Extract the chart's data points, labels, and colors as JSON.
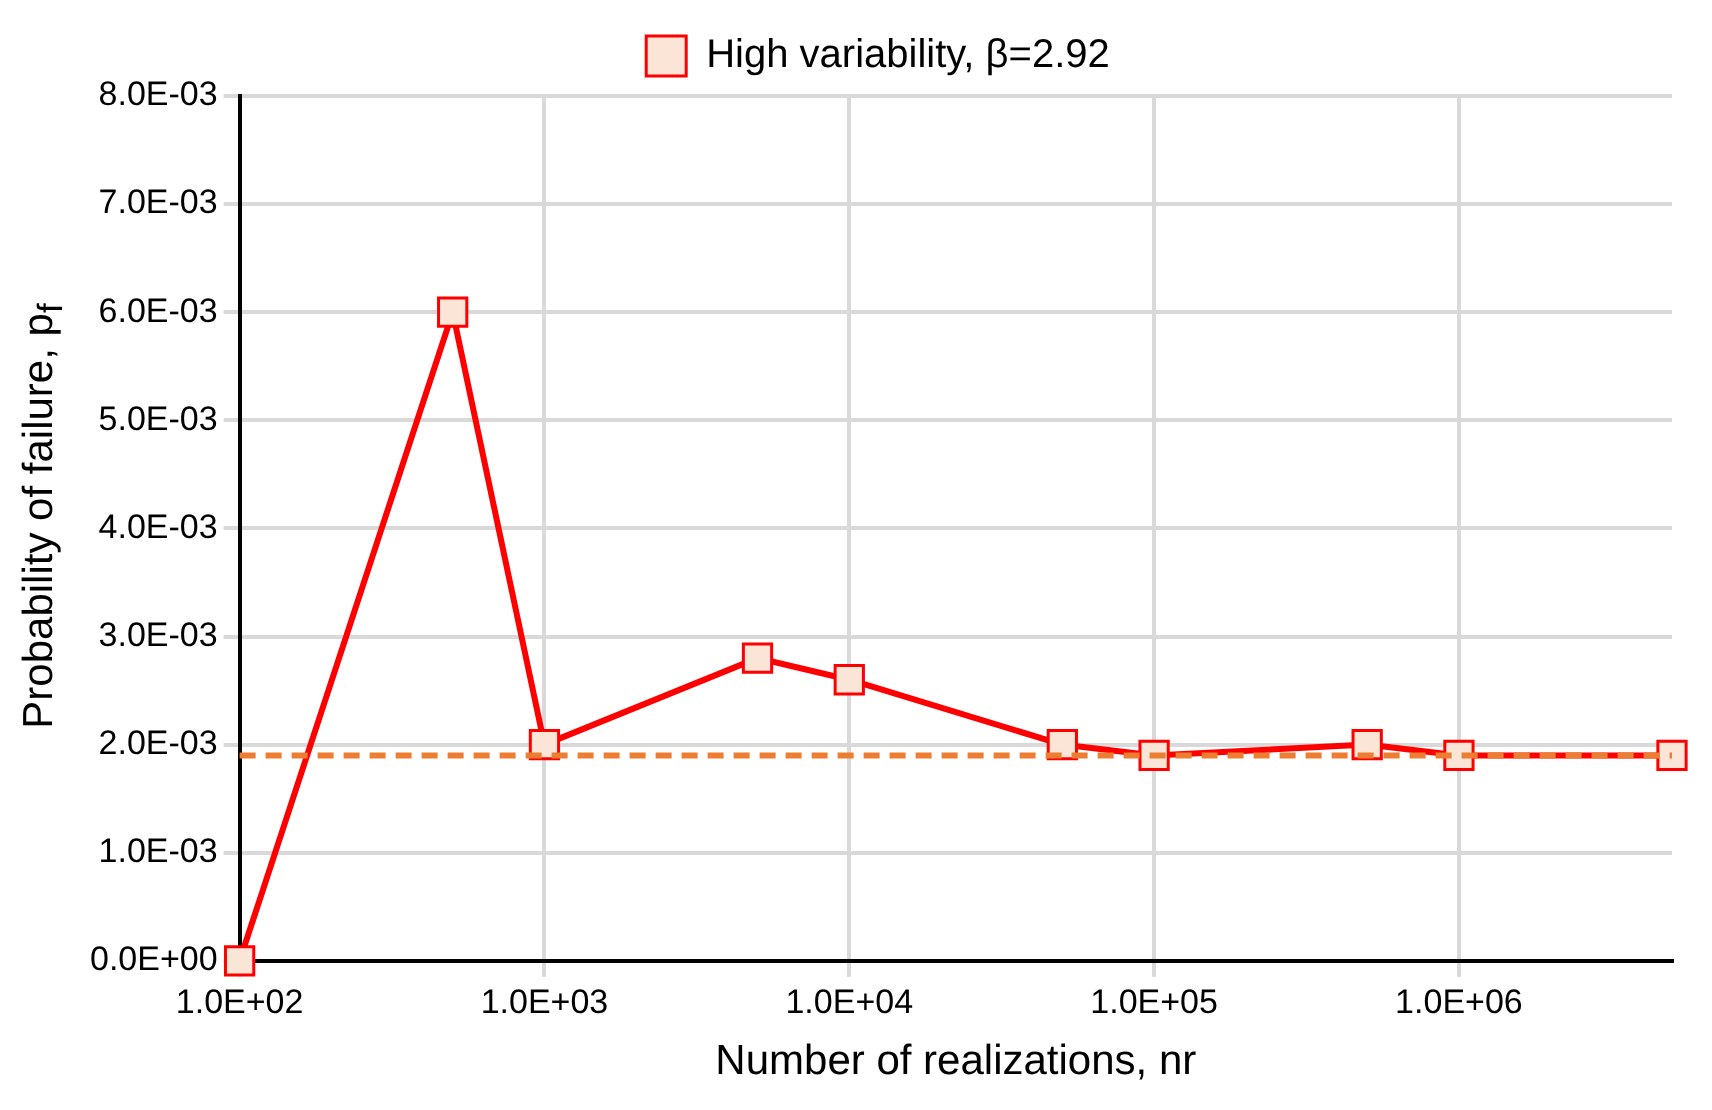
{
  "chart_data": {
    "type": "line",
    "xlabel": "Number of realizations, nr",
    "ylabel": "Probability of failure, p$_{f}$",
    "x": [
      100,
      500,
      1000,
      5000,
      10000,
      50000,
      100000,
      500000,
      1000000,
      5000000
    ],
    "series": [
      {
        "name": "High variability, β=2.92",
        "color": "#ff0000",
        "values": [
          0,
          0.006,
          0.002,
          0.0028,
          0.0026,
          0.002,
          0.0019,
          0.002,
          0.0019,
          0.0019
        ]
      }
    ],
    "log": "x",
    "xlim": [
      100,
      5000000
    ],
    "xticks": [
      {
        "value": 100,
        "label": "1.0E+02"
      },
      {
        "value": 1000,
        "label": "1.0E+03"
      },
      {
        "value": 10000,
        "label": "1.0E+04"
      },
      {
        "value": 100000,
        "label": "1.0E+05"
      },
      {
        "value": 1000000,
        "label": "1.0E+06"
      }
    ],
    "ylim": [
      0,
      0.008
    ],
    "yticks": [
      {
        "value": 0,
        "label": "0.0E+00"
      },
      {
        "value": 0.001,
        "label": "1.0E-03"
      },
      {
        "value": 0.002,
        "label": "2.0E-03"
      },
      {
        "value": 0.003,
        "label": "3.0E-03"
      },
      {
        "value": 0.004,
        "label": "4.0E-03"
      },
      {
        "value": 0.005,
        "label": "5.0E-03"
      },
      {
        "value": 0.006,
        "label": "6.0E-03"
      },
      {
        "value": 0.007,
        "label": "7.0E-03"
      },
      {
        "value": 0.008,
        "label": "8.0E-03"
      }
    ],
    "ref_lines": [
      {
        "axis": "y",
        "value": 0.0019,
        "color": "#ed7d31",
        "line_style": "dashed"
      }
    ],
    "grid": true,
    "legend": "top",
    "marker": "square",
    "line_style": "solid"
  }
}
